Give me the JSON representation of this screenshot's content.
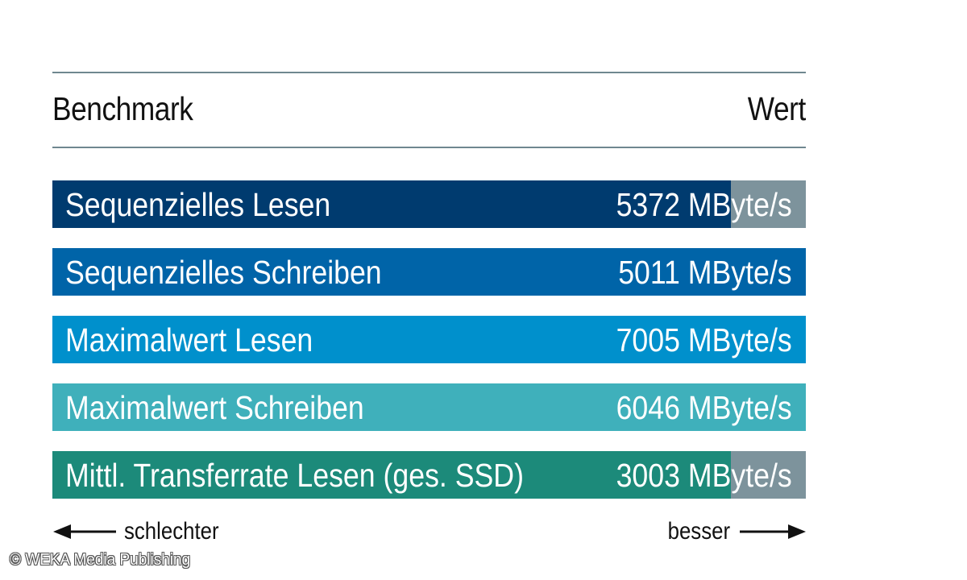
{
  "header": {
    "left": "Benchmark",
    "right": "Wert"
  },
  "chart_data": {
    "type": "bar",
    "orientation": "horizontal",
    "max": 7005,
    "categories": [
      "Sequenzielles Lesen",
      "Sequenzielles Schreiben",
      "Maximalwert Lesen",
      "Maximalwert Schreiben",
      "Mittl. Transferrate Lesen (ges. SSD)"
    ],
    "values": [
      5372,
      5011,
      7005,
      6046,
      3003
    ],
    "value_labels": [
      "5372 MByte/s",
      "5011 MByte/s",
      "7005 MByte/s",
      "6046 MByte/s",
      "3003 MByte/s"
    ],
    "fill_fractions": [
      0.9,
      1.0,
      1.0,
      1.0,
      0.9
    ],
    "colors": [
      "#003b6f",
      "#0064a8",
      "#0090cc",
      "#3fb0bb",
      "#1c8a7a"
    ],
    "track_color": "#7d939c"
  },
  "axis": {
    "left": "schlechter",
    "right": "besser"
  },
  "footer": {
    "copyright": "© WEKA Media Publishing"
  }
}
